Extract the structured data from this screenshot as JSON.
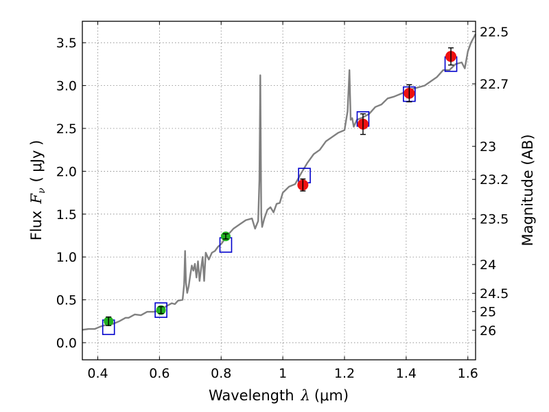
{
  "chart_data": {
    "type": "scatter",
    "title": "",
    "xlabel": "Wavelength",
    "xlabel_lambda": "λ",
    "xlabel_unit": "(μm)",
    "ylabel": "Flux",
    "ylabel_symbol": "F",
    "ylabel_sub": "ν",
    "ylabel_unit": "( μJy )",
    "y2label": "Magnitude (AB)",
    "xlim": [
      0.35,
      1.625
    ],
    "ylim": [
      -0.2,
      3.75
    ],
    "grid": true,
    "xticks": [
      {
        "value": 0.4,
        "label": "0.4"
      },
      {
        "value": 0.6,
        "label": "0.6"
      },
      {
        "value": 0.8,
        "label": "0.8"
      },
      {
        "value": 1.0,
        "label": "1"
      },
      {
        "value": 1.2,
        "label": "1.2"
      },
      {
        "value": 1.4,
        "label": "1.4"
      },
      {
        "value": 1.6,
        "label": "1.6"
      }
    ],
    "yticks": [
      {
        "value": 0.0,
        "label": "0.0"
      },
      {
        "value": 0.5,
        "label": "0.5"
      },
      {
        "value": 1.0,
        "label": "1.0"
      },
      {
        "value": 1.5,
        "label": "1.5"
      },
      {
        "value": 2.0,
        "label": "2.0"
      },
      {
        "value": 2.5,
        "label": "2.5"
      },
      {
        "value": 3.0,
        "label": "3.0"
      },
      {
        "value": 3.5,
        "label": "3.5"
      }
    ],
    "y2ticks": [
      {
        "mag": 22.5,
        "label": "22.5"
      },
      {
        "mag": 22.7,
        "label": "22.7"
      },
      {
        "mag": 23,
        "label": "23"
      },
      {
        "mag": 23.2,
        "label": "23.2"
      },
      {
        "mag": 23.5,
        "label": "23.5"
      },
      {
        "mag": 24,
        "label": "24"
      },
      {
        "mag": 24.5,
        "label": "24.5"
      },
      {
        "mag": 25,
        "label": "25"
      },
      {
        "mag": 26,
        "label": "26"
      }
    ],
    "colors": {
      "spectrum": "#808080",
      "model_box": "#0000cc",
      "optical_points": "#22b022",
      "nir_points": "#ee1111",
      "error_bars": "#000000",
      "grid": "#808080"
    },
    "series": [
      {
        "name": "model spectrum",
        "kind": "line",
        "x": [
          0.35,
          0.37,
          0.39,
          0.41,
          0.43,
          0.45,
          0.47,
          0.49,
          0.5,
          0.52,
          0.54,
          0.56,
          0.58,
          0.6,
          0.62,
          0.64,
          0.65,
          0.66,
          0.675,
          0.68,
          0.683,
          0.686,
          0.69,
          0.695,
          0.7,
          0.705,
          0.71,
          0.715,
          0.72,
          0.725,
          0.73,
          0.735,
          0.74,
          0.745,
          0.75,
          0.76,
          0.77,
          0.78,
          0.79,
          0.8,
          0.82,
          0.84,
          0.86,
          0.88,
          0.9,
          0.91,
          0.92,
          0.924,
          0.927,
          0.93,
          0.933,
          0.94,
          0.95,
          0.96,
          0.97,
          0.98,
          0.99,
          1.0,
          1.02,
          1.04,
          1.06,
          1.08,
          1.1,
          1.12,
          1.14,
          1.16,
          1.18,
          1.2,
          1.21,
          1.216,
          1.22,
          1.225,
          1.23,
          1.24,
          1.26,
          1.28,
          1.3,
          1.32,
          1.34,
          1.36,
          1.38,
          1.4,
          1.42,
          1.44,
          1.46,
          1.48,
          1.5,
          1.52,
          1.54,
          1.56,
          1.58,
          1.59,
          1.6,
          1.61,
          1.625
        ],
        "y": [
          0.15,
          0.16,
          0.16,
          0.19,
          0.21,
          0.22,
          0.25,
          0.29,
          0.29,
          0.33,
          0.32,
          0.36,
          0.36,
          0.37,
          0.42,
          0.46,
          0.45,
          0.49,
          0.5,
          0.68,
          1.07,
          0.7,
          0.58,
          0.66,
          0.79,
          0.9,
          0.84,
          0.92,
          0.76,
          0.95,
          0.72,
          0.86,
          1.0,
          0.72,
          1.05,
          0.97,
          1.05,
          1.07,
          1.12,
          1.15,
          1.25,
          1.33,
          1.38,
          1.43,
          1.45,
          1.33,
          1.42,
          1.9,
          3.12,
          1.5,
          1.35,
          1.45,
          1.55,
          1.58,
          1.52,
          1.62,
          1.63,
          1.75,
          1.82,
          1.85,
          1.98,
          2.1,
          2.2,
          2.25,
          2.35,
          2.4,
          2.45,
          2.48,
          2.7,
          3.18,
          2.6,
          2.62,
          2.52,
          2.6,
          2.63,
          2.67,
          2.75,
          2.78,
          2.85,
          2.87,
          2.9,
          2.93,
          2.96,
          2.98,
          3.0,
          3.05,
          3.1,
          3.18,
          3.18,
          3.25,
          3.27,
          3.2,
          3.4,
          3.5,
          3.6
        ]
      },
      {
        "name": "model photometry",
        "kind": "box",
        "x": [
          0.435,
          0.605,
          0.815,
          1.07,
          1.26,
          1.41,
          1.545
        ],
        "y": [
          0.18,
          0.38,
          1.14,
          1.95,
          2.61,
          2.9,
          3.25
        ]
      },
      {
        "name": "observed optical",
        "kind": "point",
        "x": [
          0.435,
          0.605,
          0.815
        ],
        "y": [
          0.25,
          0.38,
          1.24
        ],
        "yerr": [
          0.05,
          0.04,
          0.03
        ]
      },
      {
        "name": "observed near-IR",
        "kind": "point",
        "x": [
          1.065,
          1.26,
          1.41,
          1.545
        ],
        "y": [
          1.84,
          2.55,
          2.91,
          3.34
        ],
        "yerr": [
          0.07,
          0.12,
          0.1,
          0.1
        ]
      }
    ]
  }
}
